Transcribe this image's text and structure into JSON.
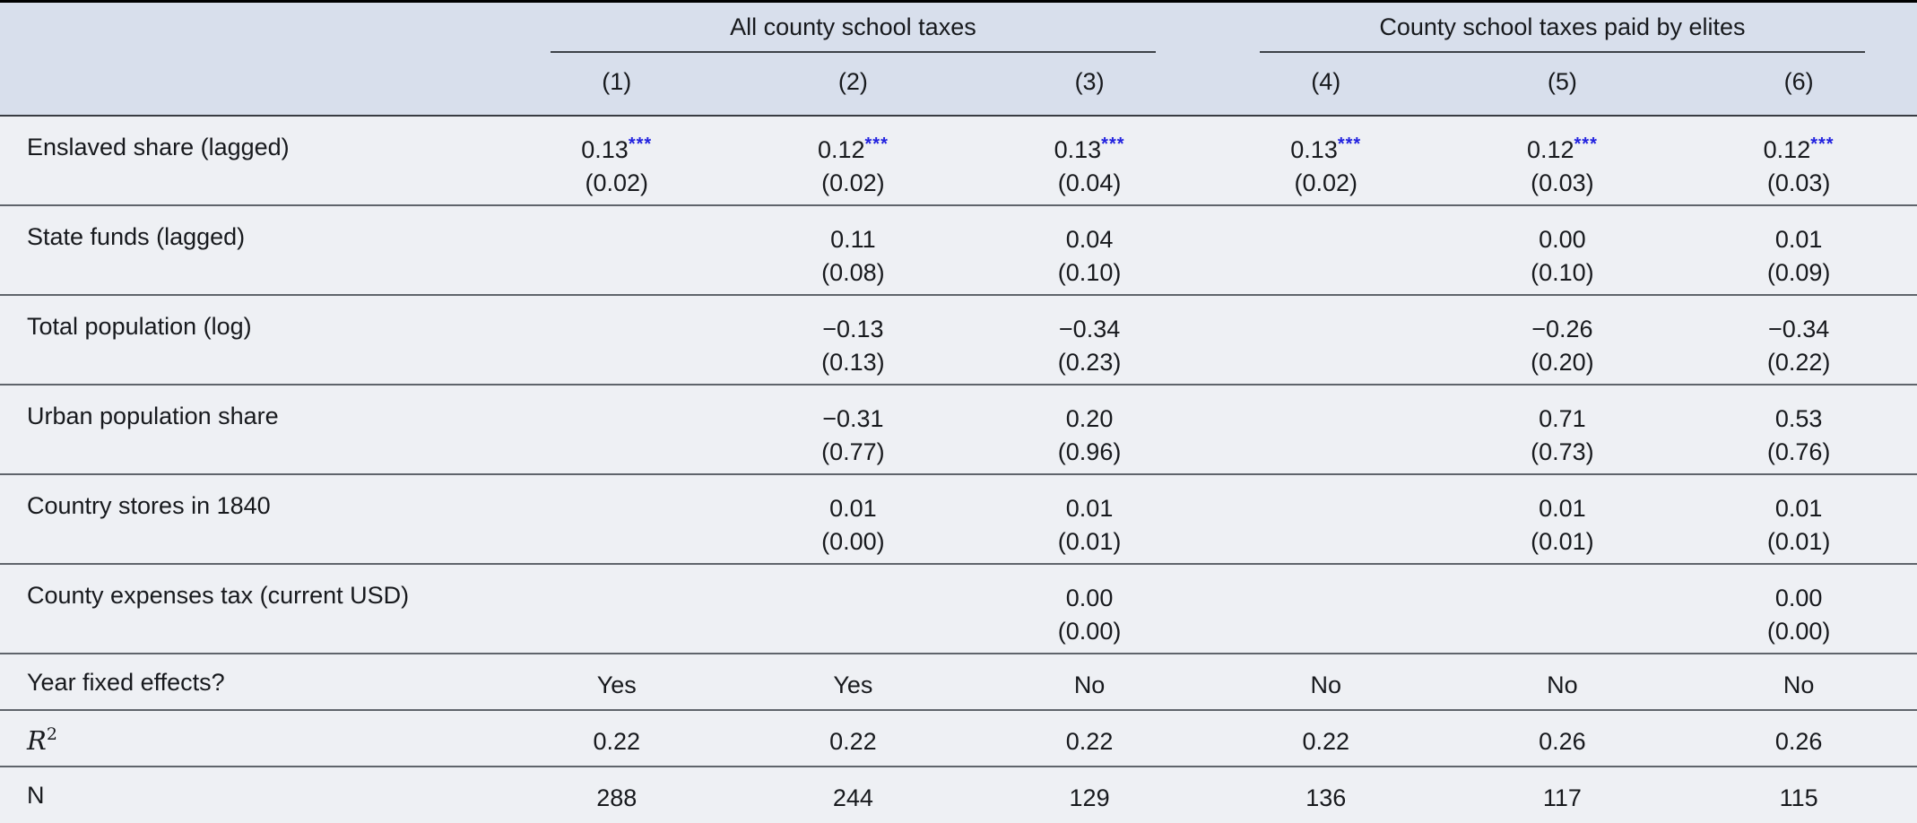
{
  "colors": {
    "header_bg": "#d8dfec",
    "body_bg": "#eef0f4",
    "significance_stars": "#2222df",
    "rule_dark": "#000000",
    "rule_gray": "#5f646b"
  },
  "table": {
    "col_groups": [
      {
        "label": "All county school taxes",
        "span": 3
      },
      {
        "label": "County school taxes paid by elites",
        "span": 3
      }
    ],
    "column_numbers": [
      "(1)",
      "(2)",
      "(3)",
      "(4)",
      "(5)",
      "(6)"
    ],
    "rows": [
      {
        "label": "Enslaved share (lagged)",
        "type": "coef",
        "cells": [
          {
            "coef": "0.13",
            "stars": "***",
            "se": "(0.02)"
          },
          {
            "coef": "0.12",
            "stars": "***",
            "se": "(0.02)"
          },
          {
            "coef": "0.13",
            "stars": "***",
            "se": "(0.04)"
          },
          {
            "coef": "0.13",
            "stars": "***",
            "se": "(0.02)"
          },
          {
            "coef": "0.12",
            "stars": "***",
            "se": "(0.03)"
          },
          {
            "coef": "0.12",
            "stars": "***",
            "se": "(0.03)"
          }
        ]
      },
      {
        "label": "State funds (lagged)",
        "type": "coef",
        "cells": [
          null,
          {
            "coef": "0.11",
            "stars": "",
            "se": "(0.08)"
          },
          {
            "coef": "0.04",
            "stars": "",
            "se": "(0.10)"
          },
          null,
          {
            "coef": "0.00",
            "stars": "",
            "se": "(0.10)"
          },
          {
            "coef": "0.01",
            "stars": "",
            "se": "(0.09)"
          }
        ]
      },
      {
        "label": "Total population (log)",
        "type": "coef",
        "cells": [
          null,
          {
            "coef": "−0.13",
            "stars": "",
            "se": "(0.13)"
          },
          {
            "coef": "−0.34",
            "stars": "",
            "se": "(0.23)"
          },
          null,
          {
            "coef": "−0.26",
            "stars": "",
            "se": "(0.20)"
          },
          {
            "coef": "−0.34",
            "stars": "",
            "se": "(0.22)"
          }
        ]
      },
      {
        "label": "Urban population share",
        "type": "coef",
        "cells": [
          null,
          {
            "coef": "−0.31",
            "stars": "",
            "se": "(0.77)"
          },
          {
            "coef": "0.20",
            "stars": "",
            "se": "(0.96)"
          },
          null,
          {
            "coef": "0.71",
            "stars": "",
            "se": "(0.73)"
          },
          {
            "coef": "0.53",
            "stars": "",
            "se": "(0.76)"
          }
        ]
      },
      {
        "label": "Country stores in 1840",
        "type": "coef",
        "cells": [
          null,
          {
            "coef": "0.01",
            "stars": "",
            "se": "(0.00)"
          },
          {
            "coef": "0.01",
            "stars": "",
            "se": "(0.01)"
          },
          null,
          {
            "coef": "0.01",
            "stars": "",
            "se": "(0.01)"
          },
          {
            "coef": "0.01",
            "stars": "",
            "se": "(0.01)"
          }
        ]
      },
      {
        "label": "County expenses tax (current USD)",
        "type": "coef",
        "cells": [
          null,
          null,
          {
            "coef": "0.00",
            "stars": "",
            "se": "(0.00)"
          },
          null,
          null,
          {
            "coef": "0.00",
            "stars": "",
            "se": "(0.00)"
          }
        ]
      },
      {
        "label": "Year fixed effects?",
        "type": "text",
        "cells": [
          "Yes",
          "Yes",
          "No",
          "No",
          "No",
          "No"
        ]
      },
      {
        "label": "R",
        "label_sup": "2",
        "label_style": "math-italic",
        "type": "text",
        "cells": [
          "0.22",
          "0.22",
          "0.22",
          "0.22",
          "0.26",
          "0.26"
        ]
      },
      {
        "label": "N",
        "type": "text",
        "cells": [
          "288",
          "244",
          "129",
          "136",
          "117",
          "115"
        ]
      }
    ]
  },
  "chart_data": {
    "type": "table",
    "title": "",
    "column_groups": [
      "All county school taxes",
      "County school taxes paid by elites"
    ],
    "columns": [
      "(1)",
      "(2)",
      "(3)",
      "(4)",
      "(5)",
      "(6)"
    ],
    "rows": [
      {
        "label": "Enslaved share (lagged)",
        "estimates": [
          "0.13***",
          "0.12***",
          "0.13***",
          "0.13***",
          "0.12***",
          "0.12***"
        ],
        "std_errors": [
          "(0.02)",
          "(0.02)",
          "(0.04)",
          "(0.02)",
          "(0.03)",
          "(0.03)"
        ]
      },
      {
        "label": "State funds (lagged)",
        "estimates": [
          "",
          "0.11",
          "0.04",
          "",
          "0.00",
          "0.01"
        ],
        "std_errors": [
          "",
          "(0.08)",
          "(0.10)",
          "",
          "(0.10)",
          "(0.09)"
        ]
      },
      {
        "label": "Total population (log)",
        "estimates": [
          "",
          "−0.13",
          "−0.34",
          "",
          "−0.26",
          "−0.34"
        ],
        "std_errors": [
          "",
          "(0.13)",
          "(0.23)",
          "",
          "(0.20)",
          "(0.22)"
        ]
      },
      {
        "label": "Urban population share",
        "estimates": [
          "",
          "−0.31",
          "0.20",
          "",
          "0.71",
          "0.53"
        ],
        "std_errors": [
          "",
          "(0.77)",
          "(0.96)",
          "",
          "(0.73)",
          "(0.76)"
        ]
      },
      {
        "label": "Country stores in 1840",
        "estimates": [
          "",
          "0.01",
          "0.01",
          "",
          "0.01",
          "0.01"
        ],
        "std_errors": [
          "",
          "(0.00)",
          "(0.01)",
          "",
          "(0.01)",
          "(0.01)"
        ]
      },
      {
        "label": "County expenses tax (current USD)",
        "estimates": [
          "",
          "",
          "0.00",
          "",
          "",
          "0.00"
        ],
        "std_errors": [
          "",
          "",
          "(0.00)",
          "",
          "",
          "(0.00)"
        ]
      },
      {
        "label": "Year fixed effects?",
        "estimates": [
          "Yes",
          "Yes",
          "No",
          "No",
          "No",
          "No"
        ]
      },
      {
        "label": "R2",
        "estimates": [
          "0.22",
          "0.22",
          "0.22",
          "0.22",
          "0.26",
          "0.26"
        ]
      },
      {
        "label": "N",
        "estimates": [
          "288",
          "244",
          "129",
          "136",
          "117",
          "115"
        ]
      }
    ]
  }
}
